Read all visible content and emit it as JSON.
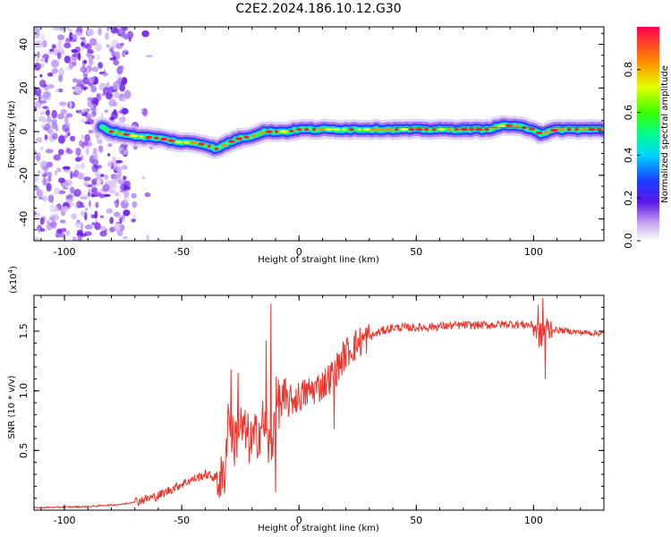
{
  "title": "C2E2.2024.186.10.12.G30",
  "chart_data": [
    {
      "type": "heatmap",
      "name": "spectrogram",
      "xlabel": "Height of straight line (km)",
      "ylabel": "Frequency (Hz)",
      "xlim": [
        -113,
        130
      ],
      "ylim": [
        -50,
        48
      ],
      "xticks": [
        -100,
        -50,
        0,
        50,
        100
      ],
      "yticks": [
        -40,
        -20,
        0,
        20,
        40
      ],
      "xtick_labels": [
        "-100",
        "-50",
        "0",
        "50",
        "100"
      ],
      "ytick_labels": [
        "-40",
        "-20",
        "0",
        "20",
        "40"
      ],
      "noise_region_x": [
        -113,
        -73
      ],
      "ridge": {
        "x": [
          -84,
          -80,
          -70,
          -60,
          -50,
          -45,
          -40,
          -35,
          -30,
          -25,
          -20,
          -15,
          -10,
          -5,
          0,
          5,
          10,
          20,
          40,
          60,
          80,
          88,
          95,
          100,
          103,
          110,
          120,
          130
        ],
        "freq": [
          2,
          0,
          -2,
          -3,
          -5,
          -5,
          -6,
          -8,
          -5,
          -3,
          -2,
          0,
          0,
          0,
          1,
          1,
          1,
          1,
          1,
          1,
          1,
          3,
          2,
          1,
          -1,
          1,
          1,
          1
        ]
      },
      "colorbar": {
        "label": "Normalized spectral amplitude",
        "range": [
          0.0,
          1.0
        ],
        "ticks": [
          0.0,
          0.2,
          0.4,
          0.6,
          0.8
        ],
        "tick_labels": [
          "0.0",
          "0.2",
          "0.4",
          "0.6",
          "0.8"
        ]
      }
    },
    {
      "type": "line",
      "name": "snr",
      "xlabel": "Height of straight line (km)",
      "ylabel": "SNR (10 * v/v)",
      "exponent_label": "(x10",
      "exponent_power": "4",
      "exponent_close": ")",
      "xlim": [
        -113,
        130
      ],
      "ylim": [
        0,
        1.8
      ],
      "xticks": [
        -100,
        -50,
        0,
        50,
        100
      ],
      "yticks": [
        0.5,
        1.0,
        1.5
      ],
      "xtick_labels": [
        "-100",
        "-50",
        "0",
        "50",
        "100"
      ],
      "ytick_labels": [
        "0.5",
        "1.0",
        "1.5"
      ],
      "color": "#e8362e",
      "trend": {
        "x": [
          -113,
          -90,
          -75,
          -68,
          -60,
          -50,
          -40,
          -32,
          -30,
          -28,
          -25,
          -20,
          -15,
          -12,
          -10,
          -5,
          0,
          5,
          10,
          15,
          20,
          25,
          30,
          35,
          40,
          50,
          60,
          70,
          80,
          90,
          100,
          103,
          105,
          110,
          120,
          130
        ],
        "y": [
          0.02,
          0.03,
          0.05,
          0.08,
          0.12,
          0.22,
          0.3,
          0.25,
          0.85,
          0.55,
          0.7,
          0.55,
          0.75,
          0.45,
          0.9,
          0.9,
          0.95,
          1.0,
          1.05,
          1.15,
          1.32,
          1.4,
          1.45,
          1.5,
          1.53,
          1.53,
          1.54,
          1.55,
          1.55,
          1.56,
          1.55,
          1.45,
          1.52,
          1.51,
          1.49,
          1.48
        ]
      },
      "spikes": [
        {
          "x": -29,
          "y": 1.18
        },
        {
          "x": -26,
          "y": 1.15
        },
        {
          "x": -14,
          "y": 1.42
        },
        {
          "x": -12,
          "y": 1.73
        },
        {
          "x": -10,
          "y": 0.15
        },
        {
          "x": 15,
          "y": 0.68
        },
        {
          "x": 102,
          "y": 1.72
        },
        {
          "x": 104,
          "y": 1.78
        },
        {
          "x": 105,
          "y": 1.1
        }
      ]
    }
  ]
}
